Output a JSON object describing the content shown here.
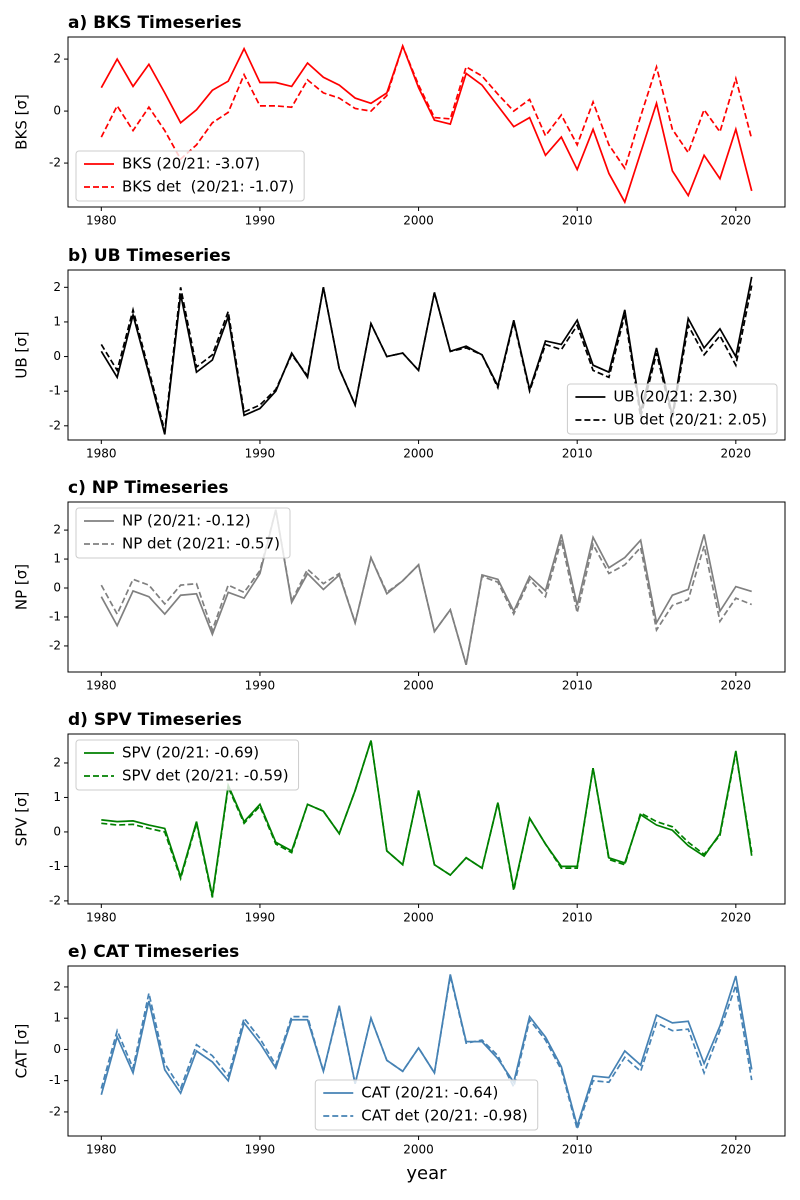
{
  "chart_data": [
    {
      "type": "line",
      "title": "a) BKS Timeseries",
      "ylabel": "BKS [σ]",
      "x": [
        1980,
        1981,
        1982,
        1983,
        1984,
        1985,
        1986,
        1987,
        1988,
        1989,
        1990,
        1991,
        1992,
        1993,
        1994,
        1995,
        1996,
        1997,
        1998,
        1999,
        2000,
        2001,
        2002,
        2003,
        2004,
        2005,
        2006,
        2007,
        2008,
        2009,
        2010,
        2011,
        2012,
        2013,
        2014,
        2015,
        2016,
        2017,
        2018,
        2019,
        2020,
        2021
      ],
      "xlim": [
        1977.9,
        2023.1
      ],
      "xticks": [
        1980,
        1990,
        2000,
        2010,
        2020
      ],
      "ylim": [
        -3.69,
        2.85
      ],
      "yticks": [
        -2,
        0,
        2
      ],
      "legend": "lower left",
      "series": [
        {
          "name": "BKS (20/21: -3.07)",
          "color": "#ff0000",
          "style": "solid",
          "values": [
            0.9,
            2.0,
            0.95,
            1.8,
            0.7,
            -0.45,
            0.05,
            0.8,
            1.15,
            2.4,
            1.1,
            1.1,
            0.95,
            1.85,
            1.3,
            1.0,
            0.5,
            0.3,
            0.7,
            2.5,
            0.9,
            -0.35,
            -0.5,
            1.45,
            1.0,
            0.2,
            -0.6,
            -0.25,
            -1.7,
            -1.0,
            -2.25,
            -0.7,
            -2.4,
            -3.5,
            -1.6,
            0.3,
            -2.3,
            -3.25,
            -1.7,
            -2.6,
            -0.7,
            -3.07
          ]
        },
        {
          "name": "BKS det  (20/21: -1.07)",
          "color": "#ff0000",
          "style": "dashed",
          "values": [
            -1.0,
            0.2,
            -0.75,
            0.15,
            -0.75,
            -1.85,
            -1.3,
            -0.45,
            -0.05,
            1.4,
            0.2,
            0.2,
            0.15,
            1.2,
            0.7,
            0.5,
            0.1,
            0.0,
            0.6,
            2.5,
            1.0,
            -0.25,
            -0.3,
            1.7,
            1.35,
            0.65,
            0.0,
            0.45,
            -0.95,
            -0.15,
            -1.3,
            0.35,
            -1.3,
            -2.2,
            -0.2,
            1.7,
            -0.7,
            -1.6,
            0.05,
            -0.8,
            1.25,
            -1.07
          ]
        }
      ]
    },
    {
      "type": "line",
      "title": "b) UB Timeseries",
      "ylabel": "UB [σ]",
      "x": [
        1980,
        1981,
        1982,
        1983,
        1984,
        1985,
        1986,
        1987,
        1988,
        1989,
        1990,
        1991,
        1992,
        1993,
        1994,
        1995,
        1996,
        1997,
        1998,
        1999,
        2000,
        2001,
        2002,
        2003,
        2004,
        2005,
        2006,
        2007,
        2008,
        2009,
        2010,
        2011,
        2012,
        2013,
        2014,
        2015,
        2016,
        2017,
        2018,
        2019,
        2020,
        2021
      ],
      "xlim": [
        1977.9,
        2023.1
      ],
      "xticks": [
        1980,
        1990,
        2000,
        2010,
        2020
      ],
      "ylim": [
        -2.41,
        2.5
      ],
      "yticks": [
        -2,
        -1,
        0,
        1,
        2
      ],
      "legend": "lower right",
      "series": [
        {
          "name": "UB (20/21: 2.30)",
          "color": "#000000",
          "style": "solid",
          "values": [
            0.15,
            -0.6,
            1.2,
            -0.5,
            -2.25,
            1.8,
            -0.45,
            -0.1,
            1.15,
            -1.7,
            -1.5,
            -1.0,
            0.1,
            -0.6,
            2.0,
            -0.35,
            -1.4,
            0.95,
            0.0,
            0.1,
            -0.4,
            1.85,
            0.15,
            0.3,
            0.05,
            -0.85,
            1.05,
            -0.95,
            0.45,
            0.35,
            1.05,
            -0.25,
            -0.45,
            1.35,
            -1.6,
            0.25,
            -1.7,
            1.1,
            0.25,
            0.8,
            0.0,
            2.3
          ]
        },
        {
          "name": "UB det (20/21: 2.05)",
          "color": "#000000",
          "style": "dashed",
          "values": [
            0.35,
            -0.4,
            1.35,
            -0.4,
            -2.15,
            2.0,
            -0.3,
            0.05,
            1.3,
            -1.6,
            -1.4,
            -0.95,
            0.05,
            -0.55,
            2.0,
            -0.35,
            -1.4,
            0.95,
            0.0,
            0.1,
            -0.4,
            1.85,
            0.15,
            0.25,
            0.05,
            -0.9,
            1.0,
            -1.0,
            0.35,
            0.2,
            0.9,
            -0.4,
            -0.6,
            1.2,
            -1.75,
            0.1,
            -1.8,
            0.9,
            0.05,
            0.6,
            -0.25,
            2.05
          ]
        }
      ]
    },
    {
      "type": "line",
      "title": "c) NP Timeseries",
      "ylabel": "NP [σ]",
      "x": [
        1980,
        1981,
        1982,
        1983,
        1984,
        1985,
        1986,
        1987,
        1988,
        1989,
        1990,
        1991,
        1992,
        1993,
        1994,
        1995,
        1996,
        1997,
        1998,
        1999,
        2000,
        2001,
        2002,
        2003,
        2004,
        2005,
        2006,
        2007,
        2008,
        2009,
        2010,
        2011,
        2012,
        2013,
        2014,
        2015,
        2016,
        2017,
        2018,
        2019,
        2020,
        2021
      ],
      "xlim": [
        1977.9,
        2023.1
      ],
      "xticks": [
        1980,
        1990,
        2000,
        2010,
        2020
      ],
      "ylim": [
        -2.9,
        2.97
      ],
      "yticks": [
        -2,
        -1,
        0,
        1,
        2
      ],
      "legend": "upper left",
      "series": [
        {
          "name": "NP (20/21: -0.12)",
          "color": "#808080",
          "style": "solid",
          "values": [
            -0.3,
            -1.3,
            -0.1,
            -0.3,
            -0.9,
            -0.25,
            -0.2,
            -1.6,
            -0.15,
            -0.35,
            0.5,
            2.7,
            -0.5,
            0.5,
            -0.05,
            0.45,
            -1.2,
            1.05,
            -0.2,
            0.25,
            0.8,
            -1.5,
            -0.75,
            -2.65,
            0.45,
            0.3,
            -0.8,
            0.4,
            -0.1,
            1.85,
            -0.6,
            1.75,
            0.7,
            1.05,
            1.65,
            -1.2,
            -0.25,
            -0.05,
            1.85,
            -0.8,
            0.05,
            -0.12
          ]
        },
        {
          "name": "NP det (20/21: -0.57)",
          "color": "#808080",
          "style": "dashed",
          "values": [
            0.1,
            -0.9,
            0.3,
            0.1,
            -0.55,
            0.1,
            0.15,
            -1.45,
            0.1,
            -0.15,
            0.6,
            2.7,
            -0.45,
            0.65,
            0.15,
            0.5,
            -1.2,
            1.05,
            -0.15,
            0.25,
            0.8,
            -1.5,
            -0.75,
            -2.65,
            0.4,
            0.2,
            -0.9,
            0.3,
            -0.3,
            1.65,
            -0.85,
            1.5,
            0.5,
            0.8,
            1.4,
            -1.45,
            -0.6,
            -0.4,
            1.45,
            -1.15,
            -0.35,
            -0.57
          ]
        }
      ]
    },
    {
      "type": "line",
      "title": "d) SPV Timeseries",
      "ylabel": "SPV [σ]",
      "x": [
        1980,
        1981,
        1982,
        1983,
        1984,
        1985,
        1986,
        1987,
        1988,
        1989,
        1990,
        1991,
        1992,
        1993,
        1994,
        1995,
        1996,
        1997,
        1998,
        1999,
        2000,
        2001,
        2002,
        2003,
        2004,
        2005,
        2006,
        2007,
        2008,
        2009,
        2010,
        2011,
        2012,
        2013,
        2014,
        2015,
        2016,
        2017,
        2018,
        2019,
        2020,
        2021
      ],
      "xlim": [
        1977.9,
        2023.1
      ],
      "xticks": [
        1980,
        1990,
        2000,
        2010,
        2020
      ],
      "ylim": [
        -2.09,
        2.84
      ],
      "yticks": [
        -2,
        -1,
        0,
        1,
        2
      ],
      "legend": "upper left",
      "series": [
        {
          "name": "SPV (20/21: -0.69)",
          "color": "#008000",
          "style": "solid",
          "values": [
            0.35,
            0.3,
            0.32,
            0.2,
            0.1,
            -1.3,
            0.3,
            -1.85,
            1.35,
            0.3,
            0.8,
            -0.3,
            -0.55,
            0.8,
            0.6,
            -0.05,
            1.2,
            2.65,
            -0.55,
            -0.95,
            1.2,
            -0.95,
            -1.25,
            -0.75,
            -1.05,
            0.85,
            -1.65,
            0.4,
            -0.35,
            -1.0,
            -1.0,
            1.85,
            -0.75,
            -0.9,
            0.5,
            0.2,
            0.05,
            -0.4,
            -0.7,
            -0.05,
            2.35,
            -0.69
          ]
        },
        {
          "name": "SPV det (20/21: -0.59)",
          "color": "#008000",
          "style": "dashed",
          "values": [
            0.25,
            0.2,
            0.22,
            0.1,
            0.0,
            -1.35,
            0.25,
            -1.9,
            1.3,
            0.25,
            0.75,
            -0.35,
            -0.6,
            0.8,
            0.6,
            -0.05,
            1.2,
            2.65,
            -0.55,
            -0.95,
            1.2,
            -0.95,
            -1.25,
            -0.75,
            -1.05,
            0.85,
            -1.7,
            0.4,
            -0.35,
            -1.05,
            -1.05,
            1.85,
            -0.8,
            -0.95,
            0.55,
            0.3,
            0.15,
            -0.3,
            -0.65,
            -0.1,
            2.3,
            -0.59
          ]
        }
      ]
    },
    {
      "type": "line",
      "title": "e) CAT Timeseries",
      "ylabel": "CAT [σ]",
      "xlabel": "year",
      "x": [
        1980,
        1981,
        1982,
        1983,
        1984,
        1985,
        1986,
        1987,
        1988,
        1989,
        1990,
        1991,
        1992,
        1993,
        1994,
        1995,
        1996,
        1997,
        1998,
        1999,
        2000,
        2001,
        2002,
        2003,
        2004,
        2005,
        2006,
        2007,
        2008,
        2009,
        2010,
        2011,
        2012,
        2013,
        2014,
        2015,
        2016,
        2017,
        2018,
        2019,
        2020,
        2021
      ],
      "xlim": [
        1977.9,
        2023.1
      ],
      "xticks": [
        1980,
        1990,
        2000,
        2010,
        2020
      ],
      "ylim": [
        -2.77,
        2.67
      ],
      "yticks": [
        -2,
        -1,
        0,
        1,
        2
      ],
      "legend": "lower center",
      "series": [
        {
          "name": "CAT (20/21: -0.64)",
          "color": "#4682b4",
          "style": "solid",
          "values": [
            -1.45,
            0.4,
            -0.75,
            1.55,
            -0.65,
            -1.4,
            -0.05,
            -0.4,
            -1.0,
            0.85,
            0.2,
            -0.6,
            0.95,
            0.95,
            -0.7,
            1.4,
            -1.1,
            1.0,
            -0.35,
            -0.7,
            0.05,
            -0.75,
            2.4,
            0.25,
            0.25,
            -0.3,
            -1.05,
            1.05,
            0.4,
            -0.55,
            -2.45,
            -0.85,
            -0.9,
            -0.05,
            -0.5,
            1.1,
            0.85,
            0.9,
            -0.45,
            0.75,
            2.35,
            -0.64
          ]
        },
        {
          "name": "CAT det (20/21: -0.98)",
          "color": "#4682b4",
          "style": "dashed",
          "values": [
            -1.25,
            0.6,
            -0.6,
            1.8,
            -0.45,
            -1.25,
            0.15,
            -0.2,
            -0.85,
            1.0,
            0.35,
            -0.5,
            1.05,
            1.05,
            -0.7,
            1.35,
            -1.1,
            1.0,
            -0.35,
            -0.7,
            0.05,
            -0.75,
            2.35,
            0.2,
            0.3,
            -0.2,
            -1.2,
            0.95,
            0.3,
            -0.65,
            -2.55,
            -1.0,
            -1.05,
            -0.25,
            -0.7,
            0.85,
            0.6,
            0.65,
            -0.75,
            0.6,
            2.05,
            -0.98
          ]
        }
      ]
    }
  ]
}
